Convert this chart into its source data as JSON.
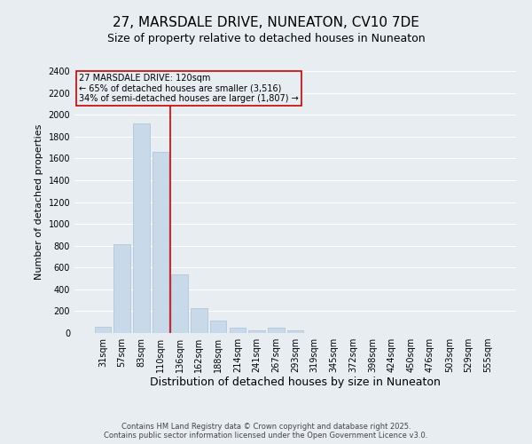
{
  "title": "27, MARSDALE DRIVE, NUNEATON, CV10 7DE",
  "subtitle": "Size of property relative to detached houses in Nuneaton",
  "xlabel": "Distribution of detached houses by size in Nuneaton",
  "ylabel": "Number of detached properties",
  "footer_line1": "Contains HM Land Registry data © Crown copyright and database right 2025.",
  "footer_line2": "Contains public sector information licensed under the Open Government Licence v3.0.",
  "annotation_title": "27 MARSDALE DRIVE: 120sqm",
  "annotation_line1": "← 65% of detached houses are smaller (3,516)",
  "annotation_line2": "34% of semi-detached houses are larger (1,807) →",
  "bar_categories": [
    "31sqm",
    "57sqm",
    "83sqm",
    "110sqm",
    "136sqm",
    "162sqm",
    "188sqm",
    "214sqm",
    "241sqm",
    "267sqm",
    "293sqm",
    "319sqm",
    "345sqm",
    "372sqm",
    "398sqm",
    "424sqm",
    "450sqm",
    "476sqm",
    "503sqm",
    "529sqm",
    "555sqm"
  ],
  "bar_values": [
    55,
    810,
    1920,
    1660,
    535,
    230,
    115,
    50,
    25,
    50,
    25,
    0,
    0,
    0,
    0,
    0,
    0,
    0,
    0,
    0,
    0
  ],
  "bar_color": "#c8d9ea",
  "bar_edge_color": "#aac0d8",
  "vline_color": "#cc0000",
  "vline_position": 3.5,
  "annotation_box_color": "#cc0000",
  "background_color": "#e8edf2",
  "ylim": [
    0,
    2400
  ],
  "yticks": [
    0,
    200,
    400,
    600,
    800,
    1000,
    1200,
    1400,
    1600,
    1800,
    2000,
    2200,
    2400
  ],
  "grid_color": "#ffffff",
  "title_fontsize": 11,
  "subtitle_fontsize": 9,
  "xlabel_fontsize": 9,
  "ylabel_fontsize": 8,
  "tick_fontsize": 7,
  "annotation_fontsize": 7,
  "footer_fontsize": 6
}
